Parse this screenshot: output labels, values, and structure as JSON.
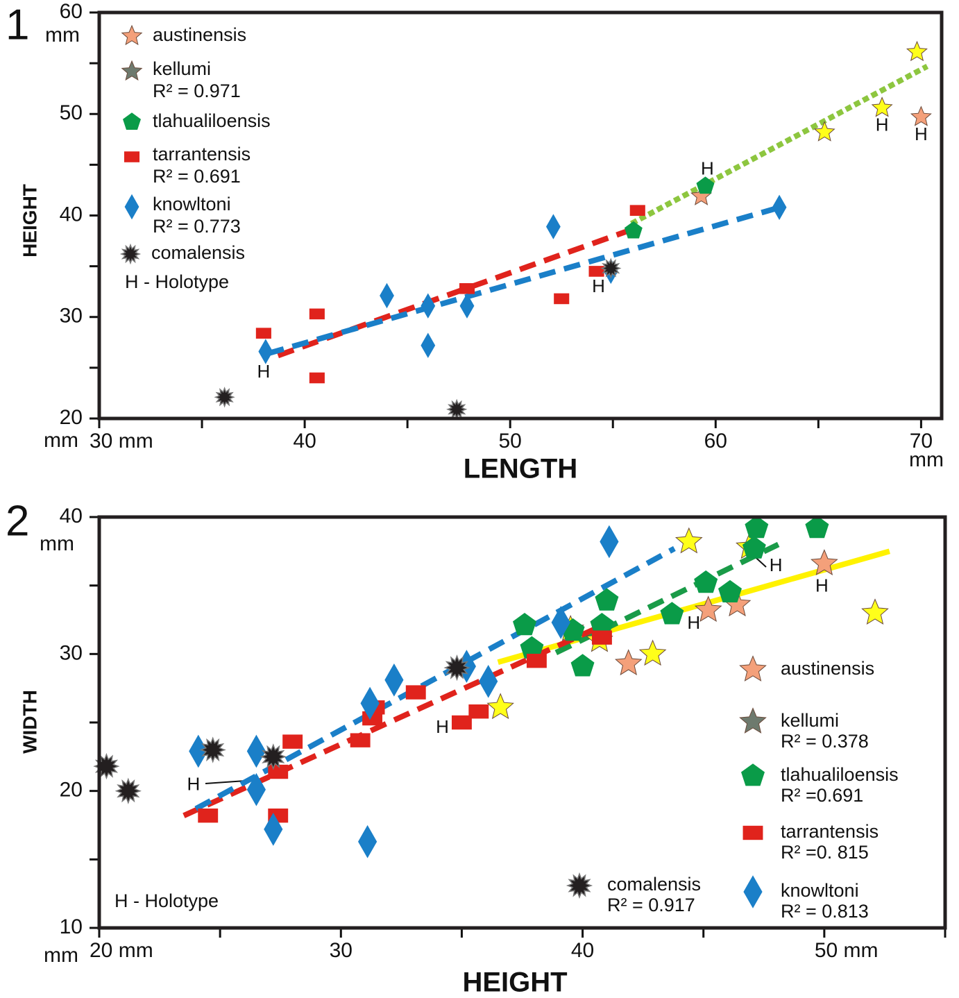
{
  "chart_data": [
    {
      "type": "scatter",
      "panel": "1",
      "xlabel": "LENGTH",
      "ylabel": "HEIGHT",
      "xlim": [
        30,
        71
      ],
      "ylim": [
        20,
        60
      ],
      "xticks": [
        {
          "value": 30,
          "label": "30 mm"
        },
        40,
        50,
        60,
        70
      ],
      "minor_xticks": [
        35,
        45,
        55,
        65
      ],
      "yticks": [
        20,
        30,
        40,
        50,
        60
      ],
      "minor_yticks": [
        25,
        35,
        45,
        55
      ],
      "units": {
        "corner": "mm",
        "x_end": "mm",
        "y_end": "mm"
      },
      "legend": "upper left",
      "note": "H - Holotype",
      "series": [
        {
          "name": "austinensis",
          "color": "#f4a07a",
          "marker": "star",
          "x": [
            59.3,
            70.0
          ],
          "y": [
            41.9,
            49.7
          ]
        },
        {
          "name": "kellumi",
          "r2": "R² = 0.971",
          "color": "#ffff1a",
          "legend_color": "#6e7a6e",
          "marker": "star",
          "x": [
            69.8,
            68.1,
            65.3
          ],
          "y": [
            56.1,
            50.6,
            48.2
          ],
          "trend": {
            "x": [
              55.9,
              70.3
            ],
            "y": [
              39.2,
              54.7
            ],
            "color": "#8dc63f",
            "style": "dotted"
          }
        },
        {
          "name": "tlahualiloensis",
          "color": "#0a9b48",
          "marker": "pentagon",
          "x": [
            59.5,
            56.0
          ],
          "y": [
            42.9,
            38.5
          ]
        },
        {
          "name": "tarrantensis",
          "r2": "R² = 0.691",
          "color": "#e0231c",
          "marker": "square",
          "x": [
            38.0,
            40.6,
            40.6,
            47.9,
            52.5,
            54.2,
            56.2
          ],
          "y": [
            28.4,
            30.3,
            24.0,
            32.8,
            31.8,
            34.5,
            40.5
          ],
          "trend": {
            "x": [
              38.7,
              55.9
            ],
            "y": [
              26.2,
              38.6
            ],
            "color": "#e0231c",
            "style": "dashed"
          }
        },
        {
          "name": "knowltoni",
          "r2": "R² = 0.773",
          "color": "#1a7fc8",
          "marker": "diamond",
          "x": [
            38.1,
            44.0,
            46.0,
            46.0,
            47.9,
            52.1,
            54.9,
            63.1
          ],
          "y": [
            26.6,
            32.1,
            27.2,
            31.1,
            31.1,
            38.9,
            34.5,
            40.8
          ],
          "trend": {
            "x": [
              38.2,
              63.3
            ],
            "y": [
              26.4,
              40.9
            ],
            "color": "#1a7fc8",
            "style": "dashed"
          }
        },
        {
          "name": "comalensis",
          "color": "#231f20",
          "marker": "burst",
          "x": [
            36.1,
            47.4,
            54.9
          ],
          "y": [
            22.1,
            20.9,
            34.8
          ]
        }
      ],
      "annotations": [
        {
          "text": "H",
          "x": 38.0,
          "y": 24.5
        },
        {
          "text": "H",
          "x": 54.3,
          "y": 32.9
        },
        {
          "text": "H",
          "x": 59.6,
          "y": 44.5
        },
        {
          "text": "H",
          "x": 68.1,
          "y": 48.8
        },
        {
          "text": "H",
          "x": 70.0,
          "y": 47.9
        }
      ]
    },
    {
      "type": "scatter",
      "panel": "2",
      "xlabel": "HEIGHT",
      "ylabel": "WIDTH",
      "xlim": [
        20,
        55
      ],
      "ylim": [
        10,
        40
      ],
      "xticks": [
        {
          "value": 20,
          "label": "20 mm"
        },
        30,
        40,
        {
          "value": 50,
          "label": "50 mm"
        }
      ],
      "minor_xticks": [
        25,
        35,
        45,
        55
      ],
      "yticks": [
        10,
        20,
        30,
        40
      ],
      "minor_yticks": [
        15,
        25,
        35
      ],
      "units": {
        "corner": "mm",
        "y_end": "mm"
      },
      "legend": "lower right",
      "note": "H - Holotype",
      "series": [
        {
          "name": "austinensis",
          "color": "#f4a07a",
          "marker": "star",
          "x": [
            41.9,
            45.2,
            46.4,
            50.0
          ],
          "y": [
            29.3,
            33.2,
            33.6,
            36.6
          ]
        },
        {
          "name": "kellumi",
          "r2": "R² = 0.378",
          "color": "#ffff1a",
          "legend_color": "#6e7a6e",
          "marker": "star",
          "x": [
            44.4,
            46.9,
            39.5,
            40.7,
            42.9,
            52.1,
            36.6
          ],
          "y": [
            38.2,
            37.8,
            31.8,
            31.0,
            30.0,
            33.0,
            26.1
          ],
          "trend": {
            "x": [
              36.5,
              52.7
            ],
            "y": [
              29.4,
              37.5
            ],
            "color": "#fff200",
            "style": "solid"
          }
        },
        {
          "name": "tlahualiloensis",
          "r2": "R² =0.691",
          "color": "#0a9b48",
          "marker": "pentagon",
          "x": [
            47.2,
            49.7,
            47.1,
            45.1,
            46.1,
            41.0,
            43.7,
            40.8,
            37.6,
            37.9,
            39.6,
            40.0
          ],
          "y": [
            39.2,
            39.2,
            37.7,
            35.2,
            34.5,
            33.9,
            32.9,
            32.1,
            32.1,
            30.4,
            31.7,
            29.1
          ],
          "trend": {
            "x": [
              38.9,
              48.1
            ],
            "y": [
              30.1,
              38.0
            ],
            "color": "#1a9b48",
            "style": "dashed"
          }
        },
        {
          "name": "tarrantensis",
          "r2": "R² =0. 815",
          "color": "#e0231c",
          "marker": "square",
          "x": [
            24.5,
            27.4,
            27.4,
            28.0,
            30.8,
            31.3,
            31.4,
            33.1,
            35.0,
            35.7,
            40.8,
            38.1
          ],
          "y": [
            18.2,
            18.2,
            21.4,
            23.6,
            23.7,
            25.3,
            26.1,
            27.2,
            25.0,
            25.8,
            31.2,
            29.5
          ],
          "trend": {
            "x": [
              23.5,
              40.6
            ],
            "y": [
              18.2,
              31.9
            ],
            "color": "#e0231c",
            "style": "dashed"
          }
        },
        {
          "name": "knowltoni",
          "r2": "R² = 0.813",
          "color": "#1a7fc8",
          "marker": "diamond",
          "x": [
            24.1,
            26.5,
            26.5,
            27.2,
            31.1,
            31.2,
            32.2,
            35.2,
            36.1,
            39.1,
            41.1
          ],
          "y": [
            22.9,
            22.9,
            20.1,
            17.2,
            16.3,
            26.4,
            28.1,
            29.1,
            28.0,
            32.3,
            38.2
          ],
          "trend": {
            "x": [
              24.0,
              43.8
            ],
            "y": [
              18.7,
              37.7
            ],
            "color": "#1a7fc8",
            "style": "dashed"
          }
        },
        {
          "name": "comalensis",
          "r2": "R² = 0.917",
          "color": "#231f20",
          "marker": "burst",
          "x": [
            20.3,
            21.2,
            24.7,
            27.2,
            34.8
          ],
          "y": [
            21.8,
            20.0,
            23.0,
            22.5,
            29.0
          ]
        }
      ],
      "annotations": [
        {
          "text": "H",
          "x": 23.9,
          "y": 20.4
        },
        {
          "text": "H",
          "x": 34.2,
          "y": 24.6
        },
        {
          "text": "H",
          "x": 44.6,
          "y": 32.2
        },
        {
          "text": "H",
          "x": 48.0,
          "y": 36.4
        },
        {
          "text": "H",
          "x": 49.9,
          "y": 34.9
        }
      ]
    }
  ]
}
